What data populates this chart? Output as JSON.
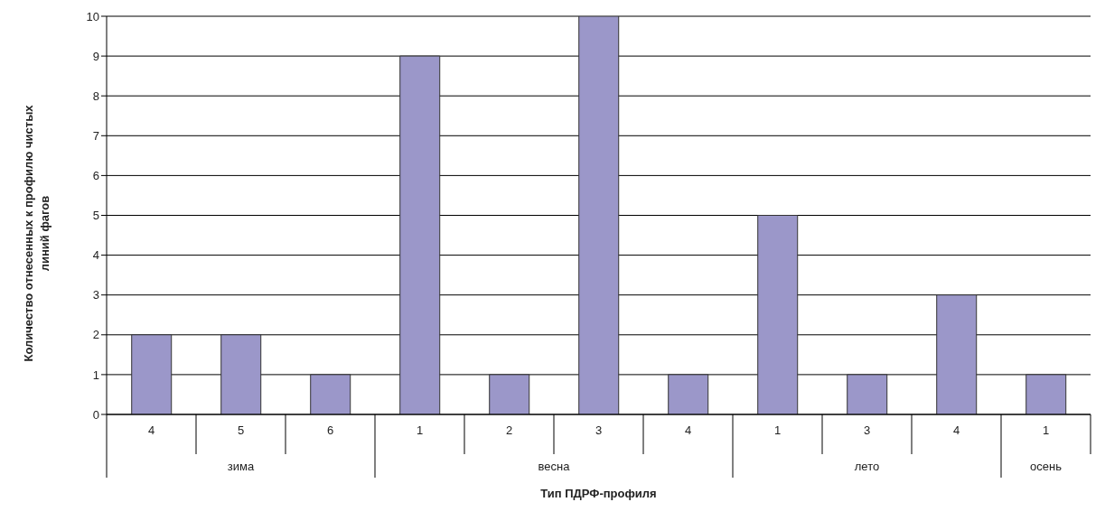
{
  "chart_data": {
    "type": "bar",
    "categories": [
      "4",
      "5",
      "6",
      "1",
      "2",
      "3",
      "4",
      "1",
      "3",
      "4",
      "1"
    ],
    "values": [
      2,
      2,
      1,
      9,
      1,
      10,
      1,
      5,
      1,
      3,
      1
    ],
    "color": "#9b97c9",
    "ylim": [
      0,
      10
    ],
    "yticks": [
      0,
      1,
      2,
      3,
      4,
      5,
      6,
      7,
      8,
      9,
      10
    ],
    "grid": "y",
    "xlabel": "Тип ПДРФ-профиля",
    "ylabel": "Количество отнесенных к профилю чистых линий фагов",
    "annotations": [
      "зима",
      "весна",
      "лето",
      "осень"
    ]
  }
}
